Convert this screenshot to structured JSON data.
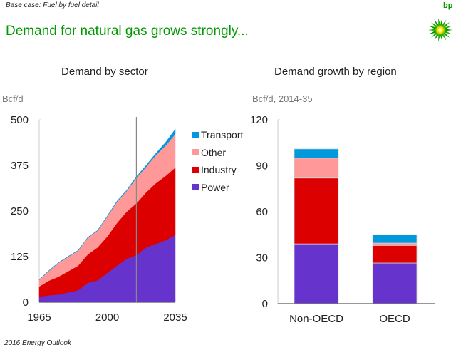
{
  "header": {
    "subtitle": "Base case: Fuel by fuel detail",
    "headline": "Demand for natural gas grows strongly...",
    "logo_text": "bp",
    "accent_color": "#009900"
  },
  "footer": {
    "text": "2016 Energy Outlook"
  },
  "colors": {
    "Transport": "#0099dd",
    "Other": "#ff9999",
    "Industry": "#dd0000",
    "Power": "#6633cc"
  },
  "chart_data": [
    {
      "type": "area",
      "stacked": true,
      "title": "Demand by sector",
      "ylabel": "Bcf/d",
      "xlabel": "",
      "x": [
        1965,
        1970,
        1975,
        1980,
        1985,
        1990,
        1995,
        2000,
        2005,
        2010,
        2015,
        2020,
        2025,
        2030,
        2035
      ],
      "xticks": [
        1965,
        2000,
        2035
      ],
      "xtick_labels": [
        "1965",
        "2000",
        "2035"
      ],
      "ylim": [
        0,
        500
      ],
      "yticks": [
        0,
        125,
        250,
        375,
        500
      ],
      "ytick_labels": [
        "0",
        "125",
        "250",
        "375",
        "500"
      ],
      "projection_marker_year": 2015,
      "legend": [
        "Transport",
        "Other",
        "Industry",
        "Power"
      ],
      "legend_position": "right",
      "series": [
        {
          "name": "Power",
          "values": [
            15,
            19,
            21,
            27,
            33,
            53,
            60,
            80,
            100,
            119,
            129,
            150,
            160,
            170,
            184
          ]
        },
        {
          "name": "Industry",
          "values": [
            28,
            40,
            49,
            58,
            67,
            78,
            90,
            100,
            117,
            129,
            142,
            151,
            166,
            176,
            185
          ]
        },
        {
          "name": "Other",
          "values": [
            18,
            27,
            38,
            40,
            41,
            46,
            46,
            55,
            58,
            57,
            70,
            70,
            77,
            83,
            92
          ]
        },
        {
          "name": "Transport",
          "values": [
            1,
            1,
            1,
            1,
            1,
            1,
            1,
            1,
            2,
            2,
            3,
            4,
            5,
            9,
            13
          ]
        }
      ]
    },
    {
      "type": "bar",
      "stacked": true,
      "title": "Demand growth by region",
      "ylabel": "Bcf/d, 2014-35",
      "categories": [
        "Non-OECD",
        "OECD"
      ],
      "ylim": [
        0,
        120
      ],
      "yticks": [
        0,
        30,
        60,
        90,
        120
      ],
      "ytick_labels": [
        "0",
        "30",
        "60",
        "90",
        "120"
      ],
      "series": [
        {
          "name": "Power",
          "values": [
            39,
            26.5
          ]
        },
        {
          "name": "Industry",
          "values": [
            43,
            11.5
          ]
        },
        {
          "name": "Other",
          "values": [
            13,
            1.5
          ]
        },
        {
          "name": "Transport",
          "values": [
            6,
            5.5
          ]
        }
      ]
    }
  ]
}
